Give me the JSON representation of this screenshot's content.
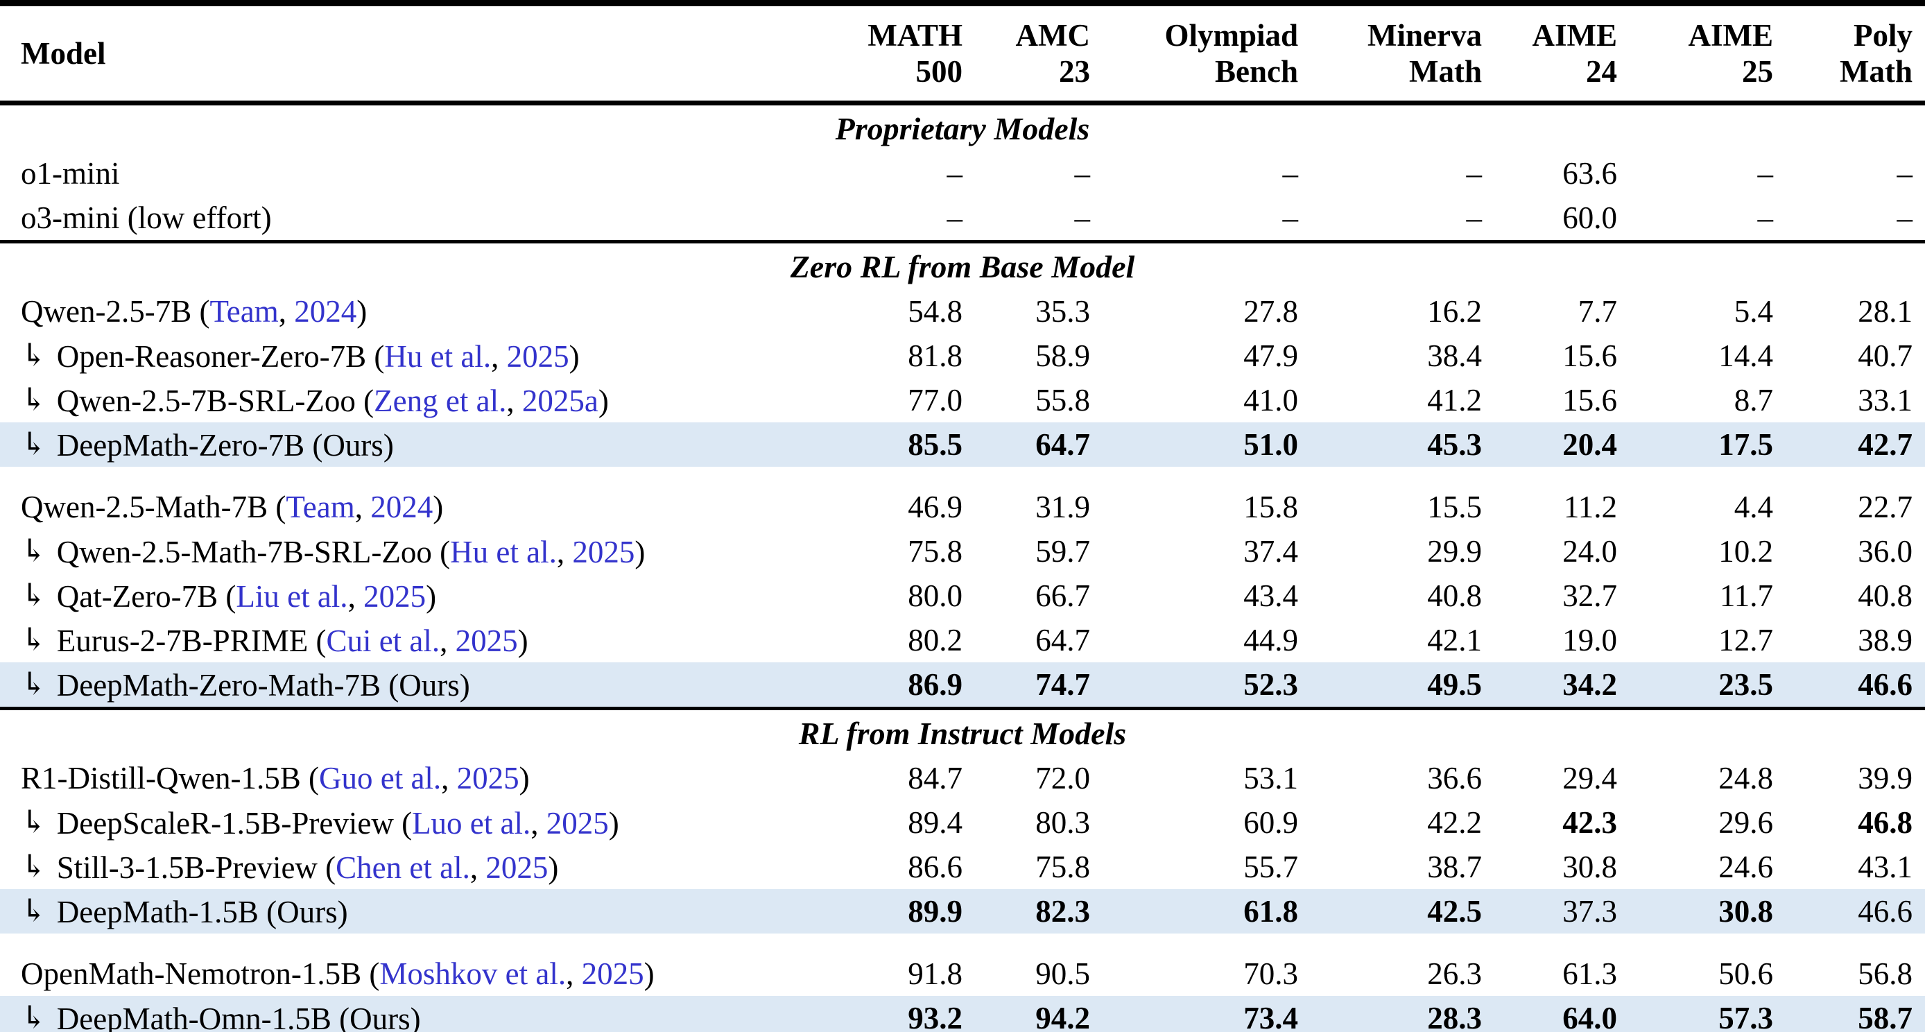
{
  "icons": {
    "branch_arrow": "↳"
  },
  "colors": {
    "link_blue": "#3333cc",
    "highlight_bg": "#dce8f4"
  },
  "header": {
    "model_label": "Model",
    "columns": [
      {
        "line1": "MATH",
        "line2": "500"
      },
      {
        "line1": "AMC",
        "line2": "23"
      },
      {
        "line1": "Olympiad",
        "line2": "Bench"
      },
      {
        "line1": "Minerva",
        "line2": "Math"
      },
      {
        "line1": "AIME",
        "line2": "24"
      },
      {
        "line1": "AIME",
        "line2": "25"
      },
      {
        "line1": "Poly",
        "line2": "Math"
      }
    ]
  },
  "sections": [
    {
      "title": "Proprietary Models",
      "groups": [
        {
          "rows": [
            {
              "arrow": false,
              "highlight": false,
              "label_parts": [
                {
                  "text": "o1-mini",
                  "link": false
                }
              ],
              "values": [
                "–",
                "–",
                "–",
                "–",
                "63.6",
                "–",
                "–"
              ],
              "bold": [
                0,
                0,
                0,
                0,
                0,
                0,
                0
              ]
            },
            {
              "arrow": false,
              "highlight": false,
              "label_parts": [
                {
                  "text": "o3-mini (low effort)",
                  "link": false
                }
              ],
              "values": [
                "–",
                "–",
                "–",
                "–",
                "60.0",
                "–",
                "–"
              ],
              "bold": [
                0,
                0,
                0,
                0,
                0,
                0,
                0
              ]
            }
          ]
        }
      ]
    },
    {
      "title": "Zero RL from Base Model",
      "groups": [
        {
          "rows": [
            {
              "arrow": false,
              "highlight": false,
              "label_parts": [
                {
                  "text": "Qwen-2.5-7B (",
                  "link": false
                },
                {
                  "text": "Team",
                  "link": true
                },
                {
                  "text": ", ",
                  "link": false
                },
                {
                  "text": "2024",
                  "link": true
                },
                {
                  "text": ")",
                  "link": false
                }
              ],
              "values": [
                "54.8",
                "35.3",
                "27.8",
                "16.2",
                "7.7",
                "5.4",
                "28.1"
              ],
              "bold": [
                0,
                0,
                0,
                0,
                0,
                0,
                0
              ]
            },
            {
              "arrow": true,
              "highlight": false,
              "label_parts": [
                {
                  "text": "Open-Reasoner-Zero-7B (",
                  "link": false
                },
                {
                  "text": "Hu et al.",
                  "link": true
                },
                {
                  "text": ", ",
                  "link": false
                },
                {
                  "text": "2025",
                  "link": true
                },
                {
                  "text": ")",
                  "link": false
                }
              ],
              "values": [
                "81.8",
                "58.9",
                "47.9",
                "38.4",
                "15.6",
                "14.4",
                "40.7"
              ],
              "bold": [
                0,
                0,
                0,
                0,
                0,
                0,
                0
              ]
            },
            {
              "arrow": true,
              "highlight": false,
              "label_parts": [
                {
                  "text": "Qwen-2.5-7B-SRL-Zoo (",
                  "link": false
                },
                {
                  "text": "Zeng et al.",
                  "link": true
                },
                {
                  "text": ", ",
                  "link": false
                },
                {
                  "text": "2025a",
                  "link": true
                },
                {
                  "text": ")",
                  "link": false
                }
              ],
              "values": [
                "77.0",
                "55.8",
                "41.0",
                "41.2",
                "15.6",
                "8.7",
                "33.1"
              ],
              "bold": [
                0,
                0,
                0,
                0,
                0,
                0,
                0
              ]
            },
            {
              "arrow": true,
              "highlight": true,
              "label_parts": [
                {
                  "text": "DeepMath-Zero-7B (Ours)",
                  "link": false
                }
              ],
              "values": [
                "85.5",
                "64.7",
                "51.0",
                "45.3",
                "20.4",
                "17.5",
                "42.7"
              ],
              "bold": [
                1,
                1,
                1,
                1,
                1,
                1,
                1
              ]
            }
          ]
        },
        {
          "rows": [
            {
              "arrow": false,
              "highlight": false,
              "label_parts": [
                {
                  "text": "Qwen-2.5-Math-7B (",
                  "link": false
                },
                {
                  "text": "Team",
                  "link": true
                },
                {
                  "text": ", ",
                  "link": false
                },
                {
                  "text": "2024",
                  "link": true
                },
                {
                  "text": ")",
                  "link": false
                }
              ],
              "values": [
                "46.9",
                "31.9",
                "15.8",
                "15.5",
                "11.2",
                "4.4",
                "22.7"
              ],
              "bold": [
                0,
                0,
                0,
                0,
                0,
                0,
                0
              ]
            },
            {
              "arrow": true,
              "highlight": false,
              "label_parts": [
                {
                  "text": "Qwen-2.5-Math-7B-SRL-Zoo (",
                  "link": false
                },
                {
                  "text": "Hu et al.",
                  "link": true
                },
                {
                  "text": ", ",
                  "link": false
                },
                {
                  "text": "2025",
                  "link": true
                },
                {
                  "text": ")",
                  "link": false
                }
              ],
              "values": [
                "75.8",
                "59.7",
                "37.4",
                "29.9",
                "24.0",
                "10.2",
                "36.0"
              ],
              "bold": [
                0,
                0,
                0,
                0,
                0,
                0,
                0
              ]
            },
            {
              "arrow": true,
              "highlight": false,
              "label_parts": [
                {
                  "text": "Qat-Zero-7B (",
                  "link": false
                },
                {
                  "text": "Liu et al.",
                  "link": true
                },
                {
                  "text": ", ",
                  "link": false
                },
                {
                  "text": "2025",
                  "link": true
                },
                {
                  "text": ")",
                  "link": false
                }
              ],
              "values": [
                "80.0",
                "66.7",
                "43.4",
                "40.8",
                "32.7",
                "11.7",
                "40.8"
              ],
              "bold": [
                0,
                0,
                0,
                0,
                0,
                0,
                0
              ]
            },
            {
              "arrow": true,
              "highlight": false,
              "label_parts": [
                {
                  "text": "Eurus-2-7B-PRIME (",
                  "link": false
                },
                {
                  "text": "Cui et al.",
                  "link": true
                },
                {
                  "text": ", ",
                  "link": false
                },
                {
                  "text": "2025",
                  "link": true
                },
                {
                  "text": ")",
                  "link": false
                }
              ],
              "values": [
                "80.2",
                "64.7",
                "44.9",
                "42.1",
                "19.0",
                "12.7",
                "38.9"
              ],
              "bold": [
                0,
                0,
                0,
                0,
                0,
                0,
                0
              ]
            },
            {
              "arrow": true,
              "highlight": true,
              "label_parts": [
                {
                  "text": "DeepMath-Zero-Math-7B (Ours)",
                  "link": false
                }
              ],
              "values": [
                "86.9",
                "74.7",
                "52.3",
                "49.5",
                "34.2",
                "23.5",
                "46.6"
              ],
              "bold": [
                1,
                1,
                1,
                1,
                1,
                1,
                1
              ]
            }
          ]
        }
      ]
    },
    {
      "title": "RL from Instruct Models",
      "groups": [
        {
          "rows": [
            {
              "arrow": false,
              "highlight": false,
              "label_parts": [
                {
                  "text": "R1-Distill-Qwen-1.5B (",
                  "link": false
                },
                {
                  "text": "Guo et al.",
                  "link": true
                },
                {
                  "text": ", ",
                  "link": false
                },
                {
                  "text": "2025",
                  "link": true
                },
                {
                  "text": ")",
                  "link": false
                }
              ],
              "values": [
                "84.7",
                "72.0",
                "53.1",
                "36.6",
                "29.4",
                "24.8",
                "39.9"
              ],
              "bold": [
                0,
                0,
                0,
                0,
                0,
                0,
                0
              ]
            },
            {
              "arrow": true,
              "highlight": false,
              "label_parts": [
                {
                  "text": "DeepScaleR-1.5B-Preview (",
                  "link": false
                },
                {
                  "text": "Luo et al.",
                  "link": true
                },
                {
                  "text": ", ",
                  "link": false
                },
                {
                  "text": "2025",
                  "link": true
                },
                {
                  "text": ")",
                  "link": false
                }
              ],
              "values": [
                "89.4",
                "80.3",
                "60.9",
                "42.2",
                "42.3",
                "29.6",
                "46.8"
              ],
              "bold": [
                0,
                0,
                0,
                0,
                1,
                0,
                1
              ]
            },
            {
              "arrow": true,
              "highlight": false,
              "label_parts": [
                {
                  "text": "Still-3-1.5B-Preview (",
                  "link": false
                },
                {
                  "text": "Chen et al.",
                  "link": true
                },
                {
                  "text": ", ",
                  "link": false
                },
                {
                  "text": "2025",
                  "link": true
                },
                {
                  "text": ")",
                  "link": false
                }
              ],
              "values": [
                "86.6",
                "75.8",
                "55.7",
                "38.7",
                "30.8",
                "24.6",
                "43.1"
              ],
              "bold": [
                0,
                0,
                0,
                0,
                0,
                0,
                0
              ]
            },
            {
              "arrow": true,
              "highlight": true,
              "label_parts": [
                {
                  "text": "DeepMath-1.5B (Ours)",
                  "link": false
                }
              ],
              "values": [
                "89.9",
                "82.3",
                "61.8",
                "42.5",
                "37.3",
                "30.8",
                "46.6"
              ],
              "bold": [
                1,
                1,
                1,
                1,
                0,
                1,
                0
              ]
            }
          ]
        },
        {
          "rows": [
            {
              "arrow": false,
              "highlight": false,
              "label_parts": [
                {
                  "text": "OpenMath-Nemotron-1.5B (",
                  "link": false
                },
                {
                  "text": "Moshkov et al.",
                  "link": true
                },
                {
                  "text": ", ",
                  "link": false
                },
                {
                  "text": "2025",
                  "link": true
                },
                {
                  "text": ")",
                  "link": false
                }
              ],
              "values": [
                "91.8",
                "90.5",
                "70.3",
                "26.3",
                "61.3",
                "50.6",
                "56.8"
              ],
              "bold": [
                0,
                0,
                0,
                0,
                0,
                0,
                0
              ]
            },
            {
              "arrow": true,
              "highlight": true,
              "label_parts": [
                {
                  "text": "DeepMath-Omn-1.5B (Ours)",
                  "link": false
                }
              ],
              "values": [
                "93.2",
                "94.2",
                "73.4",
                "28.3",
                "64.0",
                "57.3",
                "58.7"
              ],
              "bold": [
                1,
                1,
                1,
                1,
                1,
                1,
                1
              ]
            }
          ]
        }
      ]
    }
  ]
}
